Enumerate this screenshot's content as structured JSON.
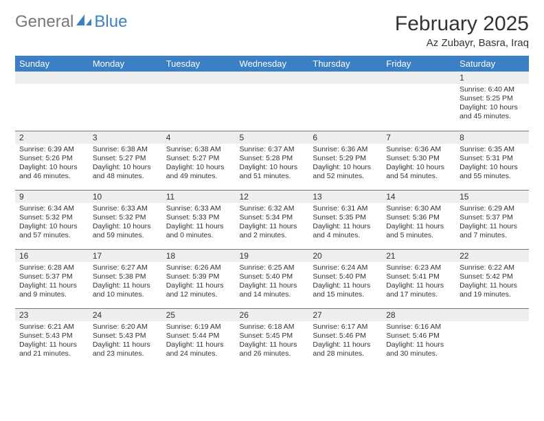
{
  "logo": {
    "text1": "General",
    "text2": "Blue",
    "icon_color": "#3b7fc4"
  },
  "title": "February 2025",
  "location": "Az Zubayr, Basra, Iraq",
  "colors": {
    "header_bg": "#3b7fc4",
    "header_text": "#ffffff",
    "daynum_bg": "#eceef0",
    "border": "#777777",
    "text": "#333333"
  },
  "weekdays": [
    "Sunday",
    "Monday",
    "Tuesday",
    "Wednesday",
    "Thursday",
    "Friday",
    "Saturday"
  ],
  "weeks": [
    [
      null,
      null,
      null,
      null,
      null,
      null,
      {
        "n": "1",
        "sr": "6:40 AM",
        "ss": "5:25 PM",
        "dl": "10 hours and 45 minutes."
      }
    ],
    [
      {
        "n": "2",
        "sr": "6:39 AM",
        "ss": "5:26 PM",
        "dl": "10 hours and 46 minutes."
      },
      {
        "n": "3",
        "sr": "6:38 AM",
        "ss": "5:27 PM",
        "dl": "10 hours and 48 minutes."
      },
      {
        "n": "4",
        "sr": "6:38 AM",
        "ss": "5:27 PM",
        "dl": "10 hours and 49 minutes."
      },
      {
        "n": "5",
        "sr": "6:37 AM",
        "ss": "5:28 PM",
        "dl": "10 hours and 51 minutes."
      },
      {
        "n": "6",
        "sr": "6:36 AM",
        "ss": "5:29 PM",
        "dl": "10 hours and 52 minutes."
      },
      {
        "n": "7",
        "sr": "6:36 AM",
        "ss": "5:30 PM",
        "dl": "10 hours and 54 minutes."
      },
      {
        "n": "8",
        "sr": "6:35 AM",
        "ss": "5:31 PM",
        "dl": "10 hours and 55 minutes."
      }
    ],
    [
      {
        "n": "9",
        "sr": "6:34 AM",
        "ss": "5:32 PM",
        "dl": "10 hours and 57 minutes."
      },
      {
        "n": "10",
        "sr": "6:33 AM",
        "ss": "5:32 PM",
        "dl": "10 hours and 59 minutes."
      },
      {
        "n": "11",
        "sr": "6:33 AM",
        "ss": "5:33 PM",
        "dl": "11 hours and 0 minutes."
      },
      {
        "n": "12",
        "sr": "6:32 AM",
        "ss": "5:34 PM",
        "dl": "11 hours and 2 minutes."
      },
      {
        "n": "13",
        "sr": "6:31 AM",
        "ss": "5:35 PM",
        "dl": "11 hours and 4 minutes."
      },
      {
        "n": "14",
        "sr": "6:30 AM",
        "ss": "5:36 PM",
        "dl": "11 hours and 5 minutes."
      },
      {
        "n": "15",
        "sr": "6:29 AM",
        "ss": "5:37 PM",
        "dl": "11 hours and 7 minutes."
      }
    ],
    [
      {
        "n": "16",
        "sr": "6:28 AM",
        "ss": "5:37 PM",
        "dl": "11 hours and 9 minutes."
      },
      {
        "n": "17",
        "sr": "6:27 AM",
        "ss": "5:38 PM",
        "dl": "11 hours and 10 minutes."
      },
      {
        "n": "18",
        "sr": "6:26 AM",
        "ss": "5:39 PM",
        "dl": "11 hours and 12 minutes."
      },
      {
        "n": "19",
        "sr": "6:25 AM",
        "ss": "5:40 PM",
        "dl": "11 hours and 14 minutes."
      },
      {
        "n": "20",
        "sr": "6:24 AM",
        "ss": "5:40 PM",
        "dl": "11 hours and 15 minutes."
      },
      {
        "n": "21",
        "sr": "6:23 AM",
        "ss": "5:41 PM",
        "dl": "11 hours and 17 minutes."
      },
      {
        "n": "22",
        "sr": "6:22 AM",
        "ss": "5:42 PM",
        "dl": "11 hours and 19 minutes."
      }
    ],
    [
      {
        "n": "23",
        "sr": "6:21 AM",
        "ss": "5:43 PM",
        "dl": "11 hours and 21 minutes."
      },
      {
        "n": "24",
        "sr": "6:20 AM",
        "ss": "5:43 PM",
        "dl": "11 hours and 23 minutes."
      },
      {
        "n": "25",
        "sr": "6:19 AM",
        "ss": "5:44 PM",
        "dl": "11 hours and 24 minutes."
      },
      {
        "n": "26",
        "sr": "6:18 AM",
        "ss": "5:45 PM",
        "dl": "11 hours and 26 minutes."
      },
      {
        "n": "27",
        "sr": "6:17 AM",
        "ss": "5:46 PM",
        "dl": "11 hours and 28 minutes."
      },
      {
        "n": "28",
        "sr": "6:16 AM",
        "ss": "5:46 PM",
        "dl": "11 hours and 30 minutes."
      },
      null
    ]
  ],
  "labels": {
    "sunrise": "Sunrise:",
    "sunset": "Sunset:",
    "daylight": "Daylight:"
  }
}
